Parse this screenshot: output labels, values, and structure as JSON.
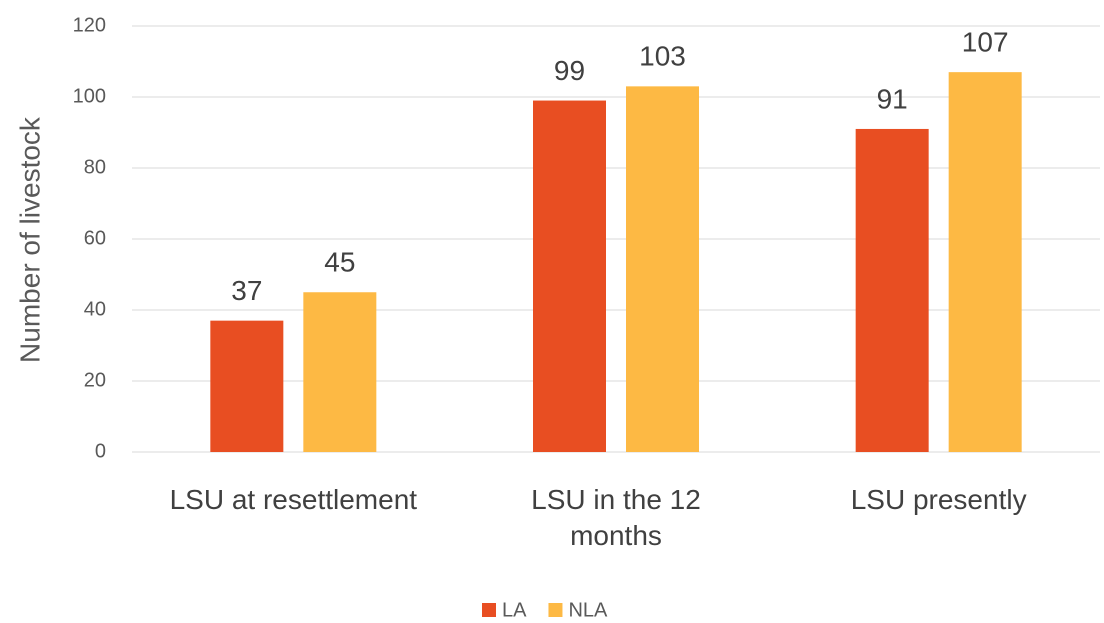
{
  "chart_data": {
    "type": "bar",
    "y_label": "Number of livestock",
    "categories": [
      "LSU at resettlement",
      "LSU in the 12 months",
      "LSU presently"
    ],
    "series": [
      {
        "name": "LA",
        "color": "#e84e22",
        "values": [
          37,
          99,
          91
        ]
      },
      {
        "name": "NLA",
        "color": "#fdb944",
        "values": [
          45,
          103,
          107
        ]
      }
    ],
    "ylim": [
      0,
      120
    ],
    "yticks": [
      0,
      20,
      40,
      60,
      80,
      100,
      120
    ],
    "grid": true,
    "legend": "bottom"
  }
}
